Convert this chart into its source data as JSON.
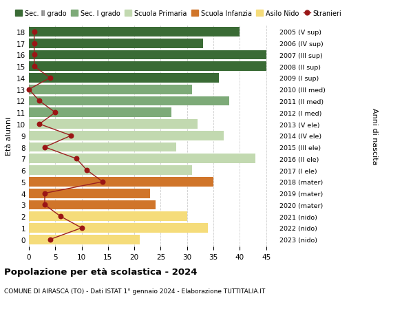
{
  "ages": [
    18,
    17,
    16,
    15,
    14,
    13,
    12,
    11,
    10,
    9,
    8,
    7,
    6,
    5,
    4,
    3,
    2,
    1,
    0
  ],
  "years": [
    "2005 (V sup)",
    "2006 (IV sup)",
    "2007 (III sup)",
    "2008 (II sup)",
    "2009 (I sup)",
    "2010 (III med)",
    "2011 (II med)",
    "2012 (I med)",
    "2013 (V ele)",
    "2014 (IV ele)",
    "2015 (III ele)",
    "2016 (II ele)",
    "2017 (I ele)",
    "2018 (mater)",
    "2019 (mater)",
    "2020 (mater)",
    "2021 (nido)",
    "2022 (nido)",
    "2023 (nido)"
  ],
  "bar_values": [
    40,
    33,
    45,
    45,
    36,
    31,
    38,
    27,
    32,
    37,
    28,
    43,
    31,
    35,
    23,
    24,
    30,
    34,
    21
  ],
  "bar_colors": [
    "#3a6b35",
    "#3a6b35",
    "#3a6b35",
    "#3a6b35",
    "#3a6b35",
    "#7daa78",
    "#7daa78",
    "#7daa78",
    "#c2d9b0",
    "#c2d9b0",
    "#c2d9b0",
    "#c2d9b0",
    "#c2d9b0",
    "#d0752a",
    "#d0752a",
    "#d0752a",
    "#f5dc7a",
    "#f5dc7a",
    "#f5dc7a"
  ],
  "stranieri_values": [
    1,
    1,
    1,
    1,
    4,
    0,
    2,
    5,
    2,
    8,
    3,
    9,
    11,
    14,
    3,
    3,
    6,
    10,
    4
  ],
  "title_bold": "Popolazione per età scolastica - 2024",
  "subtitle": "COMUNE DI AIRASCA (TO) - Dati ISTAT 1° gennaio 2024 - Elaborazione TUTTITALIA.IT",
  "ylabel_left": "Età alunni",
  "ylabel_right": "Anni di nascita",
  "xlim": [
    0,
    47
  ],
  "xticks": [
    0,
    5,
    10,
    15,
    20,
    25,
    30,
    35,
    40,
    45
  ],
  "legend_labels": [
    "Sec. II grado",
    "Sec. I grado",
    "Scuola Primaria",
    "Scuola Infanzia",
    "Asilo Nido",
    "Stranieri"
  ],
  "legend_colors": [
    "#3a6b35",
    "#7daa78",
    "#c2d9b0",
    "#d0752a",
    "#f5dc7a",
    "#8b1010"
  ],
  "stranieri_line_color": "#9b2020",
  "stranieri_dot_color": "#9b1515",
  "bar_height": 0.82,
  "bg_color": "#ffffff",
  "grid_color": "#cccccc"
}
